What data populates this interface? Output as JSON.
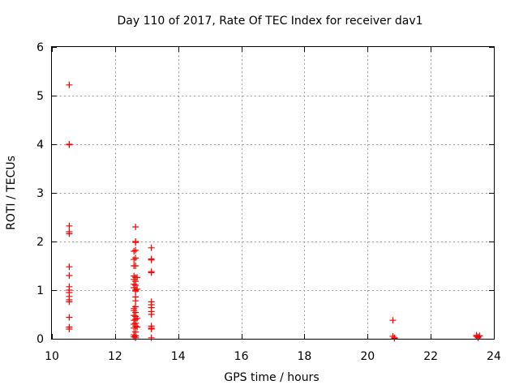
{
  "chart_data": {
    "type": "scatter",
    "title": "Day 110 of 2017, Rate Of TEC Index for receiver dav1",
    "xlabel": "GPS time / hours",
    "ylabel": "ROTI / TECUs",
    "xlim": [
      10,
      24
    ],
    "ylim": [
      0,
      6
    ],
    "xticks": [
      10,
      12,
      14,
      16,
      18,
      20,
      22,
      24
    ],
    "yticks": [
      0,
      1,
      2,
      3,
      4,
      5,
      6
    ],
    "grid": true,
    "marker": "+",
    "color": "#ff0000",
    "points": [
      [
        10.55,
        5.22
      ],
      [
        10.55,
        4.0
      ],
      [
        10.55,
        3.99
      ],
      [
        10.55,
        2.32
      ],
      [
        10.55,
        2.2
      ],
      [
        10.55,
        2.16
      ],
      [
        10.55,
        1.48
      ],
      [
        10.55,
        1.3
      ],
      [
        10.55,
        1.07
      ],
      [
        10.55,
        1.0
      ],
      [
        10.55,
        0.95
      ],
      [
        10.55,
        0.87
      ],
      [
        10.55,
        0.8
      ],
      [
        10.55,
        0.76
      ],
      [
        10.55,
        0.44
      ],
      [
        10.55,
        0.24
      ],
      [
        10.55,
        0.2
      ],
      [
        12.6,
        1.8
      ],
      [
        12.6,
        1.63
      ],
      [
        12.6,
        1.5
      ],
      [
        12.6,
        1.29
      ],
      [
        12.6,
        1.22
      ],
      [
        12.6,
        1.12
      ],
      [
        12.6,
        1.05
      ],
      [
        12.6,
        0.62
      ],
      [
        12.6,
        0.58
      ],
      [
        12.6,
        0.48
      ],
      [
        12.6,
        0.38
      ],
      [
        12.6,
        0.3
      ],
      [
        12.6,
        0.22
      ],
      [
        12.6,
        0.08
      ],
      [
        12.6,
        0.04
      ],
      [
        12.65,
        2.3
      ],
      [
        12.65,
        2.0
      ],
      [
        12.65,
        1.98
      ],
      [
        12.65,
        1.82
      ],
      [
        12.65,
        1.66
      ],
      [
        12.65,
        1.5
      ],
      [
        12.65,
        1.26
      ],
      [
        12.65,
        1.18
      ],
      [
        12.65,
        1.1
      ],
      [
        12.65,
        1.0
      ],
      [
        12.65,
        0.98
      ],
      [
        12.65,
        0.86
      ],
      [
        12.65,
        0.78
      ],
      [
        12.65,
        0.66
      ],
      [
        12.65,
        0.54
      ],
      [
        12.65,
        0.46
      ],
      [
        12.65,
        0.4
      ],
      [
        12.65,
        0.32
      ],
      [
        12.65,
        0.26
      ],
      [
        12.65,
        0.14
      ],
      [
        12.65,
        0.06
      ],
      [
        12.65,
        0.02
      ],
      [
        12.7,
        1.26
      ],
      [
        12.7,
        1.02
      ],
      [
        12.7,
        0.42
      ],
      [
        12.7,
        0.24
      ],
      [
        13.15,
        1.87
      ],
      [
        13.15,
        1.64
      ],
      [
        13.15,
        1.62
      ],
      [
        13.15,
        1.38
      ],
      [
        13.15,
        1.36
      ],
      [
        13.15,
        0.76
      ],
      [
        13.15,
        0.7
      ],
      [
        13.15,
        0.64
      ],
      [
        13.15,
        0.56
      ],
      [
        13.15,
        0.5
      ],
      [
        13.15,
        0.26
      ],
      [
        13.15,
        0.22
      ],
      [
        13.15,
        0.2
      ],
      [
        13.15,
        0.02
      ],
      [
        20.8,
        0.38
      ],
      [
        20.8,
        0.05
      ],
      [
        20.85,
        0.02
      ],
      [
        20.85,
        0.01
      ],
      [
        23.45,
        0.07
      ],
      [
        23.45,
        0.05
      ],
      [
        23.5,
        0.04
      ],
      [
        23.5,
        0.03
      ],
      [
        23.55,
        0.06
      ],
      [
        23.5,
        0.02
      ]
    ]
  }
}
